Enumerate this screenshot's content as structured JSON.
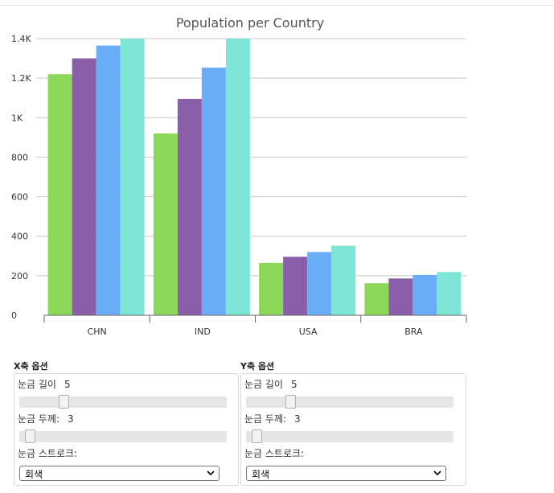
{
  "chart_data": {
    "type": "bar",
    "title": "Population per Country",
    "categories": [
      "CHN",
      "IND",
      "USA",
      "BRA"
    ],
    "series": [
      {
        "values": [
          1220,
          920,
          265,
          162
        ],
        "color": "#8cd95a"
      },
      {
        "values": [
          1300,
          1095,
          296,
          186
        ],
        "color": "#8a5ea8"
      },
      {
        "values": [
          1365,
          1253,
          320,
          204
        ],
        "color": "#6aadf7"
      },
      {
        "values": [
          1400,
          1400,
          352,
          219
        ],
        "color": "#7fe6d7"
      }
    ],
    "yticks": [
      0,
      200,
      400,
      600,
      800,
      1000,
      1200,
      1400
    ],
    "ytick_labels": [
      "0",
      "200",
      "400",
      "600",
      "800",
      "1K",
      "1.2K",
      "1.4K"
    ],
    "ylim": [
      0,
      1400
    ],
    "grid": true,
    "legend": "none"
  },
  "x_panel": {
    "heading": "X축 옵션",
    "tick_length_label": "눈금 길이",
    "tick_length_value": "5",
    "tick_length_fraction": 0.2,
    "tick_width_label": "눈금 두께:",
    "tick_width_value": "3",
    "tick_width_fraction": 0.03,
    "tick_stroke_label": "눈금 스트로크:",
    "tick_stroke_value": "회색"
  },
  "y_panel": {
    "heading": "Y축 옵션",
    "tick_length_label": "눈금 길이",
    "tick_length_value": "5",
    "tick_length_fraction": 0.2,
    "tick_width_label": "눈금 두께:",
    "tick_width_value": "3",
    "tick_width_fraction": 0.03,
    "tick_stroke_label": "눈금 스트로크:",
    "tick_stroke_value": "회색"
  },
  "icons": {
    "select_chevron": "chevron-down-icon"
  }
}
